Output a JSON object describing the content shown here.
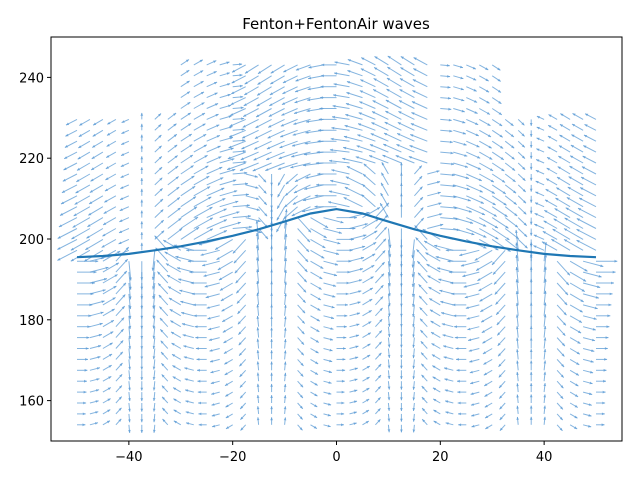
{
  "chart_data": {
    "type": "quiver",
    "title": "Fenton+FentonAir waves",
    "xlabel": "",
    "ylabel": "",
    "xlim": [
      -55,
      55
    ],
    "ylim": [
      150,
      250
    ],
    "xticks": [
      -40,
      -20,
      0,
      20,
      40
    ],
    "yticks": [
      160,
      180,
      200,
      220,
      240
    ],
    "xtick_labels": [
      "−40",
      "−20",
      "0",
      "20",
      "40"
    ],
    "ytick_labels": [
      "160",
      "180",
      "200",
      "220",
      "240"
    ],
    "grid": false,
    "legend": "none",
    "colors": {
      "surface": "#1f77b4",
      "arrows": "#5b9bd5",
      "axes": "#000000"
    },
    "surface": {
      "x": [
        -50,
        -45,
        -40,
        -35,
        -30,
        -25,
        -20,
        -15,
        -10,
        -5,
        0,
        5,
        10,
        15,
        20,
        25,
        30,
        35,
        40,
        45,
        50
      ],
      "y": [
        195.5,
        195.8,
        196.3,
        197.2,
        198.2,
        199.4,
        200.8,
        202.4,
        204.3,
        206.3,
        207.4,
        206.3,
        204.3,
        202.4,
        200.8,
        199.4,
        198.2,
        197.2,
        196.3,
        195.8,
        195.5
      ]
    },
    "arrow_field": {
      "x_start": -50,
      "x_step": 2.5,
      "x_count": 41,
      "y_start": 154,
      "y_step": 2.7,
      "y_count": 34,
      "air_top": 230,
      "note_units": "data units"
    }
  }
}
